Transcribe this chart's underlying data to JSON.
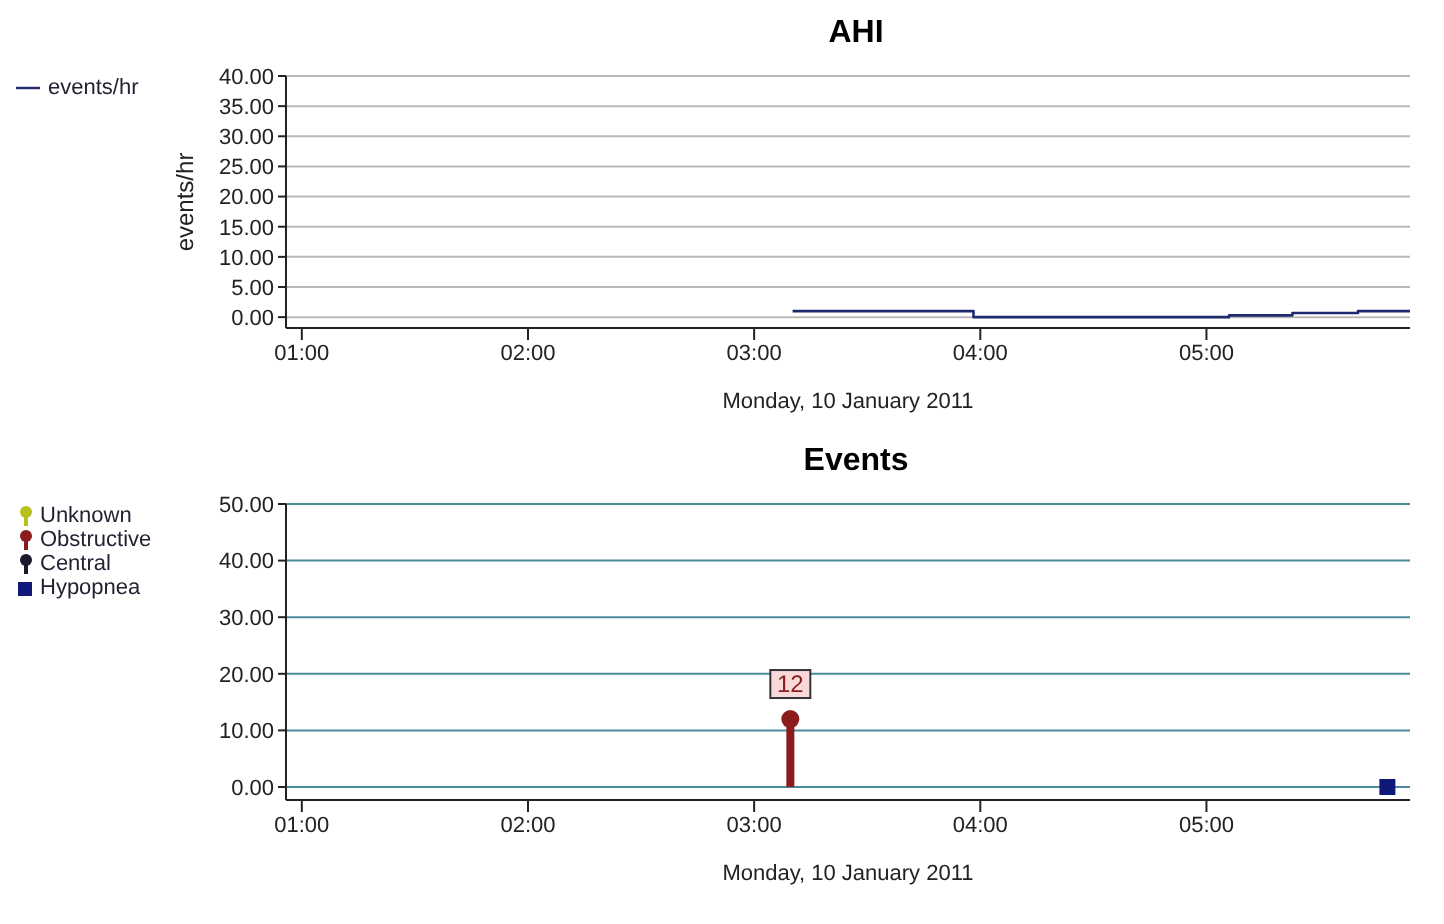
{
  "chart_data": [
    {
      "type": "step",
      "title": "AHI",
      "ylabel": "events/hr",
      "xlabel": "Monday, 10 January 2011",
      "legend": "left",
      "grid": "y",
      "xlim": [
        0.93,
        5.9
      ],
      "xticks": [
        {
          "value": 1,
          "label": "01:00"
        },
        {
          "value": 2,
          "label": "02:00"
        },
        {
          "value": 3,
          "label": "03:00"
        },
        {
          "value": 4,
          "label": "04:00"
        },
        {
          "value": 5,
          "label": "05:00"
        }
      ],
      "ylim": [
        -1.8,
        40
      ],
      "yticks": [
        {
          "value": 0,
          "label": "0.00"
        },
        {
          "value": 5,
          "label": "5.00"
        },
        {
          "value": 10,
          "label": "10.00"
        },
        {
          "value": 15,
          "label": "15.00"
        },
        {
          "value": 20,
          "label": "20.00"
        },
        {
          "value": 25,
          "label": "25.00"
        },
        {
          "value": 30,
          "label": "30.00"
        },
        {
          "value": 35,
          "label": "35.00"
        },
        {
          "value": 40,
          "label": "40.00"
        }
      ],
      "series": [
        {
          "name": "events/hr",
          "color": "#1f2a6e",
          "x": [
            3.17,
            3.97,
            5.1,
            5.38,
            5.67,
            5.9
          ],
          "values": [
            1.0,
            0.0,
            0.3,
            0.7,
            1.0,
            1.0
          ]
        }
      ]
    },
    {
      "type": "lollipop",
      "title": "Events",
      "xlabel": "Monday, 10 January 2011",
      "legend": "left",
      "grid": "y",
      "xlim": [
        0.93,
        5.9
      ],
      "xticks": [
        {
          "value": 1,
          "label": "01:00"
        },
        {
          "value": 2,
          "label": "02:00"
        },
        {
          "value": 3,
          "label": "03:00"
        },
        {
          "value": 4,
          "label": "04:00"
        },
        {
          "value": 5,
          "label": "05:00"
        }
      ],
      "ylim": [
        -2.3,
        50
      ],
      "yticks": [
        {
          "value": 0,
          "label": "0.00"
        },
        {
          "value": 10,
          "label": "10.00"
        },
        {
          "value": 20,
          "label": "20.00"
        },
        {
          "value": 30,
          "label": "30.00"
        },
        {
          "value": 40,
          "label": "40.00"
        },
        {
          "value": 50,
          "label": "50.00"
        }
      ],
      "series": [
        {
          "name": "Unknown",
          "color": "#b8c020",
          "marker": "circle"
        },
        {
          "name": "Obstructive",
          "color": "#8b1c1c",
          "marker": "circle",
          "x": [
            3.16
          ],
          "values": [
            12
          ],
          "value_labels": [
            "12"
          ]
        },
        {
          "name": "Central",
          "color": "#1a1a2a",
          "marker": "circle"
        },
        {
          "name": "Hypopnea",
          "type": "scatter",
          "color": "#10187a",
          "marker": "square",
          "x": [
            5.8
          ],
          "values": [
            0
          ]
        }
      ]
    }
  ]
}
